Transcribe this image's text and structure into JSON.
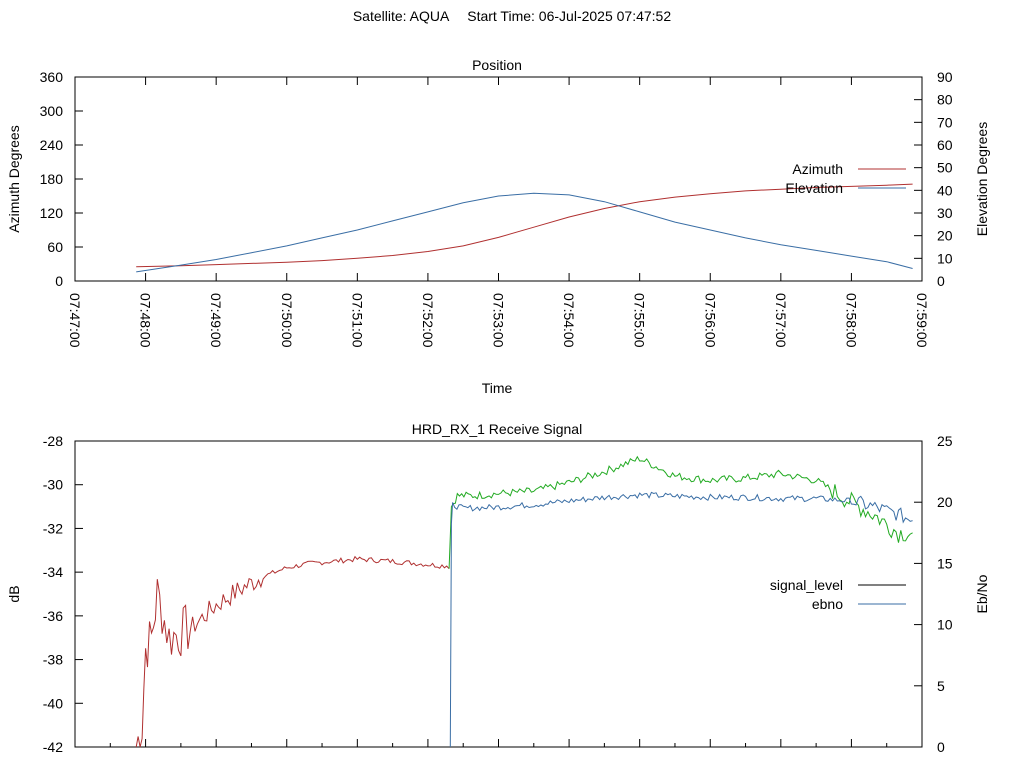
{
  "header": {
    "satellite": "Satellite: AQUA",
    "start_time": "Start Time: 06-Jul-2025 07:47:52"
  },
  "colors": {
    "azimuth": "#b03030",
    "elevation": "#3a6ea5",
    "signal_weak": "#b03030",
    "signal_strong": "#22aa22",
    "ebno": "#3a6ea5"
  },
  "chart_data": [
    {
      "type": "line",
      "title": "Position",
      "xlabel": "Time",
      "ylabel": "Azimuth Degrees",
      "y2label": "Elevation Degrees",
      "xlim": [
        "07:47:00",
        "07:59:00"
      ],
      "ylim": [
        0,
        360
      ],
      "y2lim": [
        0,
        90
      ],
      "x_ticks": [
        "07:47:00",
        "07:48:00",
        "07:49:00",
        "07:50:00",
        "07:51:00",
        "07:52:00",
        "07:53:00",
        "07:54:00",
        "07:55:00",
        "07:56:00",
        "07:57:00",
        "07:58:00",
        "07:59:00"
      ],
      "y_ticks": [
        "0",
        "60",
        "120",
        "180",
        "240",
        "300",
        "360"
      ],
      "y2_ticks": [
        "0",
        "10",
        "20",
        "30",
        "40",
        "50",
        "60",
        "70",
        "80",
        "90"
      ],
      "legend_position": "right",
      "series": [
        {
          "name": "Azimuth",
          "axis": "left",
          "x": [
            "07:47:52",
            "07:48:30",
            "07:49:00",
            "07:49:30",
            "07:50:00",
            "07:50:30",
            "07:51:00",
            "07:51:30",
            "07:52:00",
            "07:52:30",
            "07:53:00",
            "07:53:30",
            "07:54:00",
            "07:54:30",
            "07:55:00",
            "07:55:30",
            "07:56:00",
            "07:56:30",
            "07:57:00",
            "07:57:30",
            "07:58:00",
            "07:58:30",
            "07:58:52"
          ],
          "values": [
            25,
            27,
            29,
            31,
            33,
            36,
            40,
            45,
            52,
            62,
            77,
            95,
            113,
            128,
            140,
            148,
            154,
            159,
            162,
            165,
            167,
            169,
            171
          ]
        },
        {
          "name": "Elevation",
          "axis": "right",
          "x": [
            "07:47:52",
            "07:48:30",
            "07:49:00",
            "07:49:30",
            "07:50:00",
            "07:50:30",
            "07:51:00",
            "07:51:30",
            "07:52:00",
            "07:52:30",
            "07:53:00",
            "07:53:30",
            "07:54:00",
            "07:54:30",
            "07:55:00",
            "07:55:30",
            "07:56:00",
            "07:56:30",
            "07:57:00",
            "07:57:30",
            "07:58:00",
            "07:58:30",
            "07:58:52"
          ],
          "values": [
            4,
            7,
            9.5,
            12.5,
            15.5,
            19,
            22.5,
            26.5,
            30.5,
            34.5,
            37.5,
            38.7,
            38,
            35,
            30.5,
            26,
            22.5,
            19,
            16,
            13.5,
            11,
            8.5,
            5.5
          ]
        }
      ]
    },
    {
      "type": "line",
      "title": "HRD_RX_1 Receive Signal",
      "ylabel": "dB",
      "y2label": "Eb/No",
      "xlim": [
        "07:47:00",
        "07:59:00"
      ],
      "ylim": [
        -42,
        -28
      ],
      "y2lim": [
        0,
        25
      ],
      "y_ticks": [
        "-42",
        "-40",
        "-38",
        "-36",
        "-34",
        "-32",
        "-30",
        "-28"
      ],
      "y2_ticks": [
        "0",
        "5",
        "10",
        "15",
        "20",
        "25"
      ],
      "legend_position": "right",
      "series": [
        {
          "name": "signal_level",
          "axis": "left",
          "x": [
            "07:47:52",
            "07:47:57",
            "07:48:00",
            "07:48:05",
            "07:48:10",
            "07:48:20",
            "07:48:40",
            "07:49:00",
            "07:49:20",
            "07:49:40",
            "07:50:00",
            "07:50:20",
            "07:50:40",
            "07:51:00",
            "07:51:30",
            "07:51:50",
            "07:52:10",
            "07:52:18",
            "07:52:20",
            "07:52:25",
            "07:52:40",
            "07:53:00",
            "07:53:30",
            "07:54:00",
            "07:54:30",
            "07:55:00",
            "07:55:30",
            "07:56:00",
            "07:56:30",
            "07:57:00",
            "07:57:30",
            "07:58:00",
            "07:58:20",
            "07:58:40",
            "07:58:52"
          ],
          "values": [
            -42,
            -41,
            -37.5,
            -37,
            -35,
            -37,
            -36.5,
            -35.5,
            -34.8,
            -34.2,
            -33.8,
            -33.6,
            -33.5,
            -33.4,
            -33.5,
            -33.6,
            -33.7,
            -33.7,
            -31,
            -30.5,
            -30.5,
            -30.4,
            -30.3,
            -29.9,
            -29.4,
            -28.8,
            -29.6,
            -29.8,
            -29.7,
            -29.5,
            -29.8,
            -30.8,
            -31.4,
            -32.2,
            -32.2
          ]
        },
        {
          "name": "ebno",
          "axis": "right",
          "x": [
            "07:52:19",
            "07:52:20",
            "07:52:21",
            "07:52:30",
            "07:53:00",
            "07:53:30",
            "07:54:00",
            "07:54:30",
            "07:55:00",
            "07:55:30",
            "07:56:00",
            "07:56:30",
            "07:57:00",
            "07:57:30",
            "07:58:00",
            "07:58:20",
            "07:58:40",
            "07:58:52"
          ],
          "values": [
            0,
            18,
            19.8,
            19.5,
            19.6,
            19.8,
            20.1,
            20.4,
            20.6,
            20.5,
            20.4,
            20.4,
            20.3,
            20.3,
            20.1,
            19.6,
            19,
            18.5
          ]
        }
      ]
    }
  ]
}
